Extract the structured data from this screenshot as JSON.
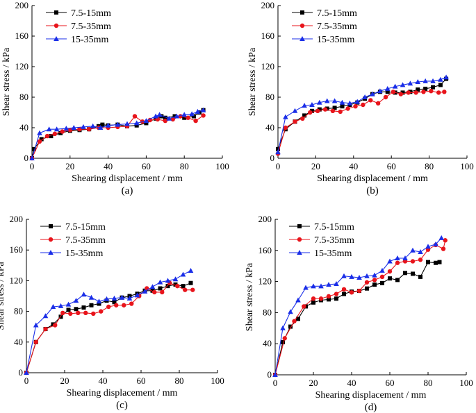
{
  "figure": {
    "series_colors": [
      "#000000",
      "#e8141b",
      "#1a2ee8"
    ],
    "series_markers": [
      "square",
      "circle",
      "triangle"
    ]
  },
  "chart_data": [
    {
      "type": "line",
      "panel_label": "(a)",
      "xlabel": "Shearing displacement / mm",
      "ylabel": "Shear stress / kPa",
      "xlim": [
        0,
        100
      ],
      "ylim": [
        0,
        200
      ],
      "xticks": [
        0,
        20,
        40,
        60,
        80,
        100
      ],
      "yticks": [
        0,
        40,
        80,
        120,
        160,
        200
      ],
      "legend_position": "top-left",
      "series": [
        {
          "name": "7.5-15mm",
          "x": [
            0,
            1,
            5,
            10,
            15,
            20,
            25,
            30,
            35,
            37,
            40,
            45,
            50,
            55,
            60,
            65,
            68,
            70,
            75,
            80,
            85,
            88,
            90
          ],
          "y": [
            0,
            12,
            25,
            29,
            33,
            36,
            37,
            38,
            42,
            44,
            43,
            44,
            42,
            43,
            46,
            52,
            55,
            53,
            55,
            53,
            55,
            60,
            63
          ]
        },
        {
          "name": "7.5-35mm",
          "x": [
            0,
            4,
            8,
            12,
            16,
            20,
            25,
            30,
            35,
            40,
            45,
            50,
            54,
            58,
            62,
            66,
            70,
            74,
            78,
            82,
            86,
            90
          ],
          "y": [
            0,
            22,
            29,
            32,
            35,
            37,
            38,
            38,
            40,
            40,
            41,
            42,
            55,
            48,
            50,
            51,
            49,
            51,
            55,
            53,
            49,
            56
          ]
        },
        {
          "name": "15-35mm",
          "x": [
            0,
            4,
            9,
            13,
            18,
            22,
            27,
            32,
            36,
            40,
            45,
            50,
            55,
            60,
            65,
            67,
            72,
            76,
            80,
            84,
            87,
            90
          ],
          "y": [
            0,
            33,
            38,
            38,
            39,
            40,
            41,
            42,
            40,
            43,
            44,
            45,
            46,
            49,
            55,
            57,
            52,
            55,
            57,
            58,
            61,
            63
          ]
        }
      ]
    },
    {
      "type": "line",
      "panel_label": "(b)",
      "xlabel": "Shearing displacement / mm",
      "ylabel": "Shear stress / kPa",
      "xlim": [
        0,
        100
      ],
      "ylim": [
        0,
        200
      ],
      "xticks": [
        0,
        20,
        40,
        60,
        80,
        100
      ],
      "yticks": [
        0,
        40,
        80,
        120,
        160,
        200
      ],
      "legend_position": "top-left",
      "series": [
        {
          "name": "7.5-15mm",
          "x": [
            0,
            4,
            9,
            14,
            18,
            22,
            26,
            30,
            34,
            38,
            42,
            46,
            50,
            54,
            58,
            62,
            66,
            70,
            74,
            78,
            82,
            86,
            89
          ],
          "y": [
            12,
            38,
            48,
            56,
            62,
            64,
            65,
            66,
            68,
            70,
            73,
            78,
            84,
            87,
            87,
            86,
            86,
            87,
            90,
            91,
            93,
            96,
            104
          ]
        },
        {
          "name": "7.5-35mm",
          "x": [
            0,
            4,
            9,
            13,
            17,
            21,
            25,
            29,
            33,
            37,
            41,
            45,
            49,
            53,
            57,
            61,
            65,
            69,
            73,
            77,
            81,
            85,
            88
          ],
          "y": [
            6,
            40,
            48,
            52,
            60,
            62,
            64,
            62,
            61,
            65,
            68,
            70,
            76,
            72,
            80,
            87,
            84,
            86,
            86,
            87,
            88,
            86,
            87
          ]
        },
        {
          "name": "15-35mm",
          "x": [
            0,
            4,
            9,
            14,
            18,
            22,
            26,
            30,
            34,
            38,
            42,
            46,
            50,
            54,
            58,
            62,
            66,
            70,
            74,
            78,
            82,
            86,
            89
          ],
          "y": [
            8,
            54,
            62,
            69,
            70,
            73,
            75,
            75,
            73,
            72,
            74,
            80,
            84,
            88,
            91,
            94,
            96,
            98,
            100,
            101,
            101,
            103,
            106
          ]
        }
      ]
    },
    {
      "type": "line",
      "panel_label": "(c)",
      "xlabel": "Shearing displacement / mm",
      "ylabel": "Shear stress / kPa",
      "xlim": [
        0,
        100
      ],
      "ylim": [
        0,
        200
      ],
      "xticks": [
        0,
        20,
        40,
        60,
        80,
        100
      ],
      "yticks": [
        0,
        40,
        80,
        120,
        160,
        200
      ],
      "legend_position": "top-left",
      "series": [
        {
          "name": "7.5-15mm",
          "x": [
            0,
            5,
            10,
            14,
            18,
            22,
            26,
            30,
            34,
            38,
            42,
            46,
            50,
            54,
            58,
            62,
            66,
            70,
            74,
            78,
            82,
            86
          ],
          "y": [
            0,
            40,
            57,
            63,
            73,
            82,
            83,
            85,
            88,
            90,
            94,
            92,
            98,
            100,
            103,
            107,
            107,
            110,
            113,
            115,
            113,
            117
          ]
        },
        {
          "name": "7.5-35mm",
          "x": [
            0,
            5,
            10,
            15,
            19,
            23,
            27,
            31,
            35,
            39,
            43,
            47,
            51,
            55,
            59,
            63,
            67,
            71,
            75,
            79,
            83,
            87
          ],
          "y": [
            0,
            40,
            57,
            62,
            78,
            77,
            78,
            78,
            77,
            80,
            86,
            88,
            88,
            90,
            100,
            110,
            105,
            105,
            117,
            113,
            108,
            108
          ]
        },
        {
          "name": "15-35mm",
          "x": [
            0,
            5,
            10,
            14,
            18,
            22,
            26,
            30,
            34,
            38,
            42,
            46,
            50,
            54,
            58,
            62,
            66,
            70,
            74,
            78,
            82,
            86
          ],
          "y": [
            0,
            62,
            74,
            86,
            87,
            89,
            94,
            102,
            98,
            93,
            96,
            97,
            98,
            97,
            101,
            106,
            112,
            118,
            120,
            122,
            128,
            133
          ]
        }
      ]
    },
    {
      "type": "line",
      "panel_label": "(d)",
      "xlabel": "Shearing displacement / mm",
      "ylabel": "Shear stress / kPa",
      "xlim": [
        0,
        100
      ],
      "ylim": [
        0,
        200
      ],
      "xticks": [
        0,
        20,
        40,
        60,
        80,
        100
      ],
      "yticks": [
        0,
        40,
        80,
        120,
        160,
        200
      ],
      "legend_position": "top-left",
      "series": [
        {
          "name": "7.5-15mm",
          "x": [
            0,
            4,
            8,
            12,
            16,
            20,
            24,
            28,
            32,
            36,
            40,
            44,
            48,
            52,
            56,
            60,
            64,
            68,
            72,
            76,
            80,
            84,
            86
          ],
          "y": [
            0,
            42,
            62,
            72,
            88,
            93,
            96,
            97,
            98,
            104,
            107,
            108,
            111,
            116,
            118,
            124,
            122,
            131,
            130,
            126,
            145,
            144,
            145
          ]
        },
        {
          "name": "7.5-35mm",
          "x": [
            0,
            5,
            10,
            15,
            20,
            24,
            28,
            32,
            36,
            40,
            44,
            48,
            52,
            56,
            60,
            64,
            68,
            72,
            76,
            80,
            84,
            88,
            89
          ],
          "y": [
            0,
            47,
            69,
            88,
            98,
            98,
            101,
            104,
            110,
            106,
            108,
            119,
            122,
            126,
            133,
            144,
            146,
            146,
            148,
            161,
            167,
            162,
            173
          ]
        },
        {
          "name": "15-35mm",
          "x": [
            0,
            4,
            8,
            12,
            16,
            20,
            24,
            28,
            32,
            36,
            40,
            44,
            48,
            52,
            56,
            60,
            64,
            68,
            72,
            76,
            80,
            84,
            87
          ],
          "y": [
            0,
            60,
            81,
            96,
            112,
            114,
            114,
            116,
            117,
            127,
            126,
            125,
            127,
            128,
            134,
            146,
            150,
            150,
            160,
            158,
            165,
            168,
            176
          ]
        }
      ]
    }
  ]
}
